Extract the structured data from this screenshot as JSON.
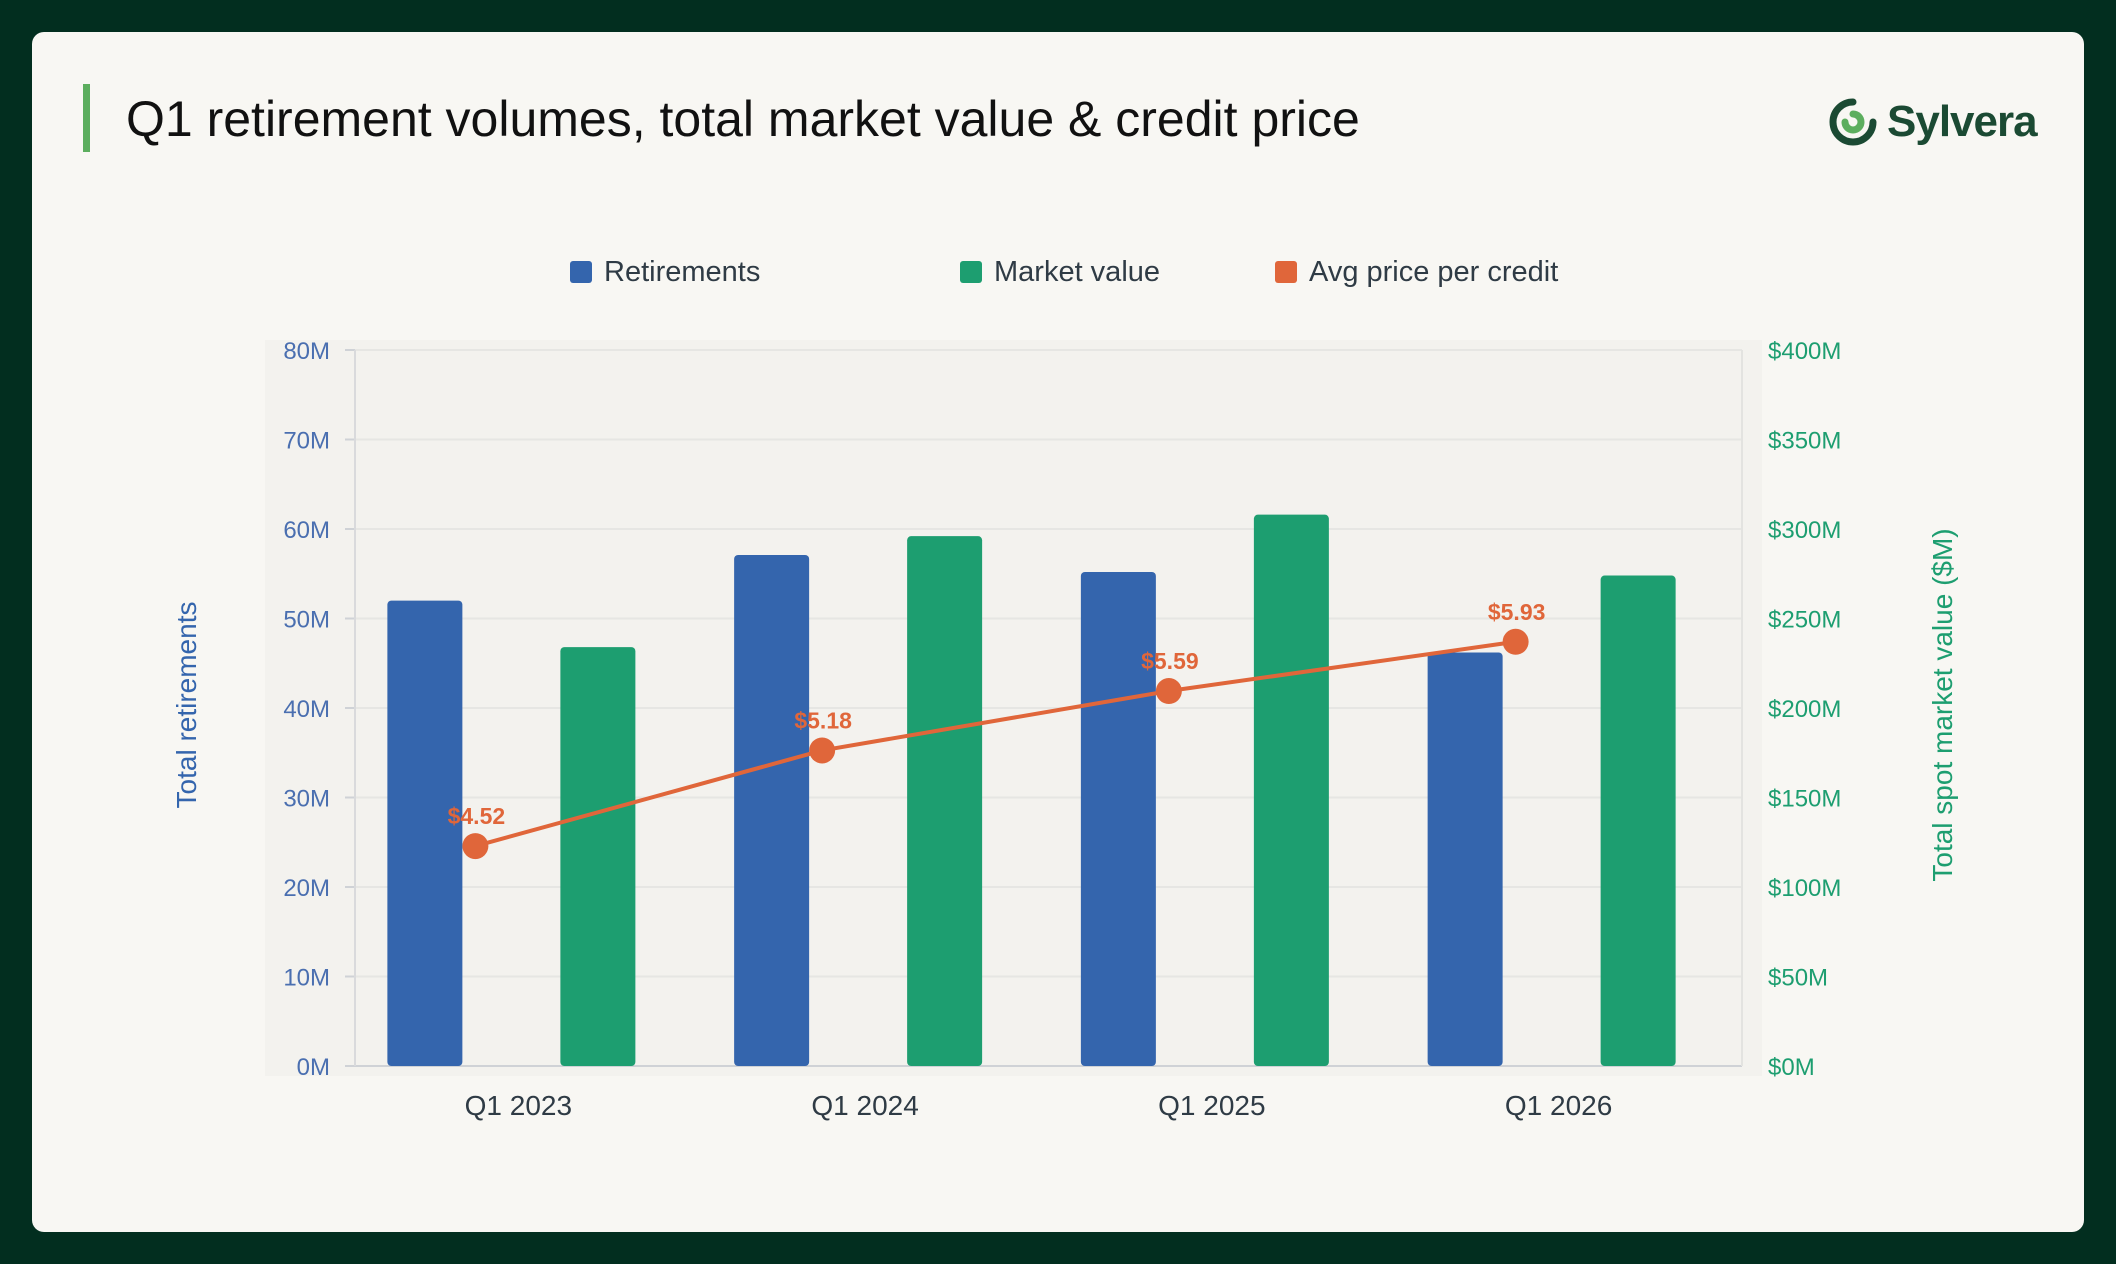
{
  "title": "Q1 retirement volumes, total market value & credit price",
  "logo": {
    "text": "Sylvera"
  },
  "legend": [
    {
      "label": "Retirements",
      "color": "#3465ad"
    },
    {
      "label": "Market value",
      "color": "#1d9e70"
    },
    {
      "label": "Avg price per credit",
      "color": "#e0663a"
    }
  ],
  "chart_data": {
    "type": "bar",
    "categories": [
      "Q1 2023",
      "Q1 2024",
      "Q1 2025",
      "Q1 2026"
    ],
    "series": [
      {
        "name": "Retirements",
        "axis": "left",
        "type": "bar",
        "color": "#3465ad",
        "values": [
          52,
          57.1,
          55.2,
          46.2
        ],
        "unit": "M"
      },
      {
        "name": "Market value",
        "axis": "right",
        "type": "bar",
        "color": "#1d9e70",
        "values": [
          234,
          296,
          308,
          274
        ],
        "unit": "$M"
      },
      {
        "name": "Avg price per credit",
        "axis": "left-scaled",
        "type": "line",
        "color": "#e0663a",
        "values": [
          4.52,
          5.18,
          5.59,
          5.93
        ],
        "labels": [
          "$4.52",
          "$5.18",
          "$5.59",
          "$5.93"
        ]
      }
    ],
    "ylabel": "Total retirements",
    "y2label": "Total spot market value ($M)",
    "ylim": [
      0,
      80
    ],
    "y2lim": [
      0,
      400
    ],
    "yticks": [
      "0M",
      "10M",
      "20M",
      "30M",
      "40M",
      "50M",
      "60M",
      "70M",
      "80M"
    ],
    "y2ticks": [
      "$0M",
      "$50M",
      "$100M",
      "$150M",
      "$200M",
      "$250M",
      "$300M",
      "$350M",
      "$400M"
    ],
    "grid": true,
    "legend_position": "top-center"
  }
}
